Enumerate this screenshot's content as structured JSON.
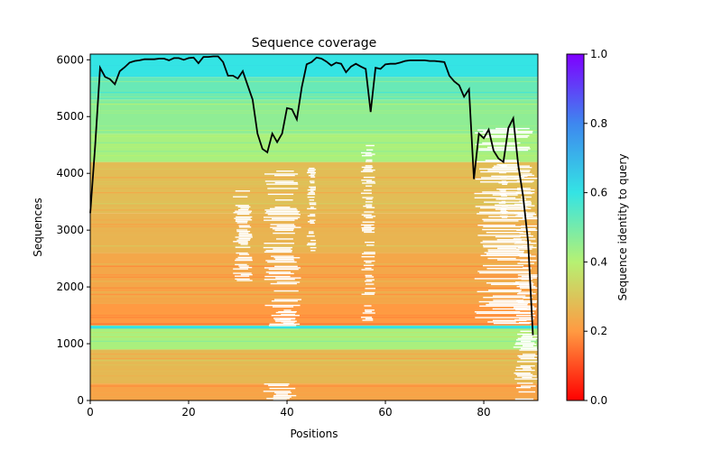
{
  "chart_data": {
    "type": "heatmap",
    "title": "Sequence coverage",
    "xlabel": "Positions",
    "ylabel": "Sequences",
    "xlim": [
      0,
      91
    ],
    "ylim": [
      0,
      6100
    ],
    "x_ticks": [
      0,
      20,
      40,
      60,
      80
    ],
    "y_ticks": [
      0,
      1000,
      2000,
      3000,
      4000,
      5000,
      6000
    ],
    "colorbar": {
      "label": "Sequence identity to query",
      "range": [
        0,
        1
      ],
      "ticks": [
        "0.0",
        "0.2",
        "0.4",
        "0.6",
        "0.8",
        "1.0"
      ],
      "colormap": "rainbow_r"
    },
    "heatmap_blocks": [
      {
        "y0": 0,
        "y1": 300,
        "identity": 0.22
      },
      {
        "y0": 300,
        "y1": 900,
        "identity": 0.27
      },
      {
        "y0": 900,
        "y1": 1280,
        "identity": 0.42
      },
      {
        "y0": 1280,
        "y1": 1320,
        "identity": 0.6
      },
      {
        "y0": 1320,
        "y1": 1700,
        "identity": 0.2
      },
      {
        "y0": 1700,
        "y1": 2600,
        "identity": 0.23
      },
      {
        "y0": 2600,
        "y1": 3300,
        "identity": 0.26
      },
      {
        "y0": 3300,
        "y1": 4200,
        "identity": 0.28
      },
      {
        "y0": 4200,
        "y1": 4700,
        "identity": 0.42
      },
      {
        "y0": 4700,
        "y1": 5300,
        "identity": 0.46
      },
      {
        "y0": 5300,
        "y1": 5700,
        "identity": 0.52
      },
      {
        "y0": 5700,
        "y1": 6100,
        "identity": 0.6
      }
    ],
    "coverage_gaps": [
      {
        "x0": 29,
        "x1": 33,
        "y0": 2000,
        "y1": 3700
      },
      {
        "x0": 35,
        "x1": 43,
        "y0": 1300,
        "y1": 4050
      },
      {
        "x0": 38,
        "x1": 42,
        "y0": 1350,
        "y1": 1650
      },
      {
        "x0": 44,
        "x1": 46,
        "y0": 2600,
        "y1": 4100
      },
      {
        "x0": 55,
        "x1": 58,
        "y0": 1400,
        "y1": 4500
      },
      {
        "x0": 78,
        "x1": 90,
        "y0": 1350,
        "y1": 4800
      },
      {
        "x0": 83,
        "x1": 85,
        "y0": 3200,
        "y1": 4200
      },
      {
        "x0": 86,
        "x1": 91,
        "y0": 0,
        "y1": 4000
      },
      {
        "x0": 35,
        "x1": 42,
        "y0": 0,
        "y1": 300
      }
    ],
    "series": [
      {
        "x": [
          0,
          1,
          2,
          3,
          4,
          5,
          6,
          7,
          8,
          9,
          10,
          11,
          12,
          13,
          14,
          15,
          16,
          17,
          18,
          19,
          20,
          21,
          22,
          23,
          24,
          25,
          26,
          27,
          28,
          29,
          30,
          31,
          32,
          33,
          34,
          35,
          36,
          37,
          38,
          39,
          40,
          41,
          42,
          43,
          44,
          45,
          46,
          47,
          48,
          49,
          50,
          51,
          52,
          53,
          54,
          55,
          56,
          57,
          58,
          59,
          60,
          61,
          62,
          63,
          64,
          65,
          66,
          67,
          68,
          69,
          70,
          71,
          72,
          73,
          74,
          75,
          76,
          77,
          78,
          79,
          80,
          81,
          82,
          83,
          84,
          85,
          86,
          87,
          88,
          89,
          90
        ],
        "values": [
          3300,
          4500,
          5860,
          5700,
          5660,
          5570,
          5800,
          5870,
          5950,
          5980,
          5990,
          6010,
          6010,
          6010,
          6020,
          6020,
          5990,
          6030,
          6030,
          6000,
          6030,
          6040,
          5940,
          6050,
          6050,
          6060,
          6060,
          5960,
          5720,
          5720,
          5670,
          5800,
          5550,
          5300,
          4700,
          4430,
          4370,
          4700,
          4550,
          4700,
          5150,
          5130,
          4950,
          5520,
          5920,
          5960,
          6040,
          6020,
          5970,
          5900,
          5950,
          5930,
          5780,
          5880,
          5930,
          5880,
          5840,
          5080,
          5860,
          5840,
          5920,
          5930,
          5930,
          5950,
          5980,
          5990,
          5990,
          5990,
          5990,
          5980,
          5980,
          5970,
          5960,
          5720,
          5620,
          5550,
          5350,
          5480,
          3900,
          4700,
          4620,
          4770,
          4400,
          4260,
          4200,
          4800,
          4970,
          4150,
          3600,
          2800,
          1150
        ]
      }
    ]
  }
}
